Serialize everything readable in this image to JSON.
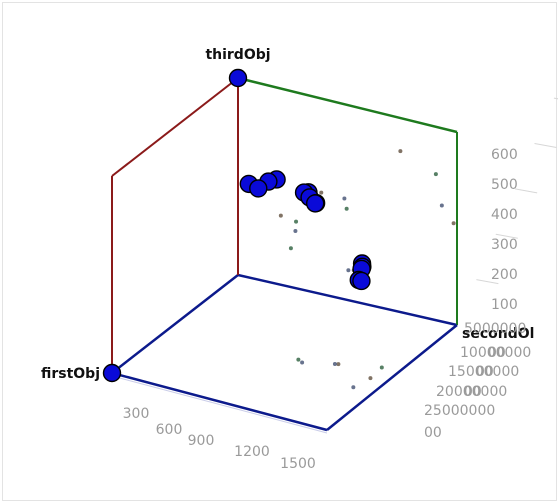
{
  "chart_data": {
    "type": "scatter",
    "projection": "3d",
    "axes": {
      "x": {
        "title": "firstObj",
        "range": [
          0,
          1500
        ],
        "ticks": [
          "300",
          "600",
          "900",
          "1200",
          "1500"
        ]
      },
      "y": {
        "title": "secondObj",
        "title_visible": "secondOl",
        "range": [
          0,
          250000000
        ],
        "ticks": [
          "5000000",
          "10000000",
          "15000000",
          "20000000",
          "25000000"
        ],
        "tick_overflow_text": "00"
      },
      "z": {
        "title": "thirdObj",
        "range": [
          0,
          650
        ],
        "ticks": [
          "100",
          "200",
          "300",
          "400",
          "500",
          "600"
        ]
      }
    },
    "edge_colors": {
      "x_axis": "#0c1a8c",
      "y_axis": "#0c1a8c",
      "z_back": "#8b1a1a",
      "z_right": "#1e7a1e"
    },
    "points_color": "#0a0ad8",
    "points_large": [
      [
        0,
        0,
        0
      ],
      [
        0,
        0,
        650
      ],
      [
        240,
        130000000,
        170
      ],
      [
        300,
        125000000,
        175
      ],
      [
        350,
        115000000,
        210
      ],
      [
        390,
        110000000,
        220
      ],
      [
        420,
        105000000,
        232
      ],
      [
        300,
        55000000,
        400
      ],
      [
        320,
        62000000,
        375
      ],
      [
        280,
        60000000,
        385
      ],
      [
        330,
        48000000,
        405
      ],
      [
        250,
        70000000,
        365
      ],
      [
        270,
        10000000,
        435
      ],
      [
        260,
        20000000,
        420
      ],
      [
        240,
        28000000,
        430
      ],
      [
        245,
        33000000,
        433
      ]
    ],
    "points_small": [
      [
        220,
        135000000,
        178
      ],
      [
        230,
        120000000,
        195
      ],
      [
        260,
        128000000,
        160
      ],
      [
        280,
        118000000,
        200
      ],
      [
        330,
        122000000,
        200
      ],
      [
        360,
        112000000,
        190
      ],
      [
        520,
        150000000,
        310
      ],
      [
        480,
        140000000,
        350
      ],
      [
        440,
        130000000,
        420
      ],
      [
        400,
        100000000,
        480
      ],
      [
        200,
        70000000,
        300
      ],
      [
        260,
        60000000,
        330
      ],
      [
        230,
        50000000,
        345
      ],
      [
        350,
        100000000,
        10
      ],
      [
        400,
        90000000,
        25
      ],
      [
        500,
        110000000,
        15
      ],
      [
        600,
        95000000,
        30
      ],
      [
        700,
        120000000,
        20
      ],
      [
        820,
        100000000,
        15
      ],
      [
        900,
        80000000,
        10
      ],
      [
        380,
        80000000,
        360
      ],
      [
        300,
        65000000,
        395
      ],
      [
        420,
        70000000,
        390
      ],
      [
        340,
        55000000,
        280
      ]
    ]
  }
}
